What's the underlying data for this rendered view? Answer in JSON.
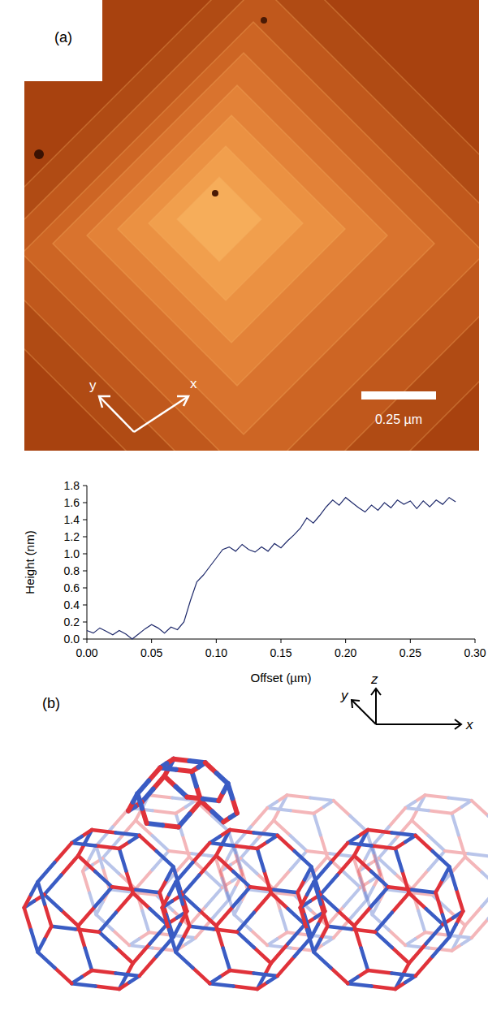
{
  "panel_a": {
    "label": "(a)",
    "axis_x": "x",
    "axis_y": "y",
    "scale_bar": "0.25 µm"
  },
  "chart_data": {
    "type": "line",
    "x_label": "Offset (µm)",
    "y_label": "Height (nm)",
    "color": "#1f2a6b",
    "x": [
      0.0,
      0.005,
      0.01,
      0.015,
      0.02,
      0.025,
      0.03,
      0.035,
      0.04,
      0.045,
      0.05,
      0.055,
      0.06,
      0.065,
      0.07,
      0.075,
      0.08,
      0.085,
      0.09,
      0.095,
      0.1,
      0.105,
      0.11,
      0.115,
      0.12,
      0.125,
      0.13,
      0.135,
      0.14,
      0.145,
      0.15,
      0.155,
      0.16,
      0.165,
      0.17,
      0.175,
      0.18,
      0.185,
      0.19,
      0.195,
      0.2,
      0.205,
      0.21,
      0.215,
      0.22,
      0.225,
      0.23,
      0.235,
      0.24,
      0.245,
      0.25,
      0.255,
      0.26,
      0.265,
      0.27,
      0.275,
      0.28,
      0.285
    ],
    "values": [
      0.1,
      0.07,
      0.13,
      0.09,
      0.05,
      0.1,
      0.06,
      0.0,
      0.06,
      0.12,
      0.17,
      0.13,
      0.07,
      0.14,
      0.11,
      0.2,
      0.45,
      0.67,
      0.75,
      0.85,
      0.95,
      1.05,
      1.08,
      1.03,
      1.11,
      1.05,
      1.02,
      1.08,
      1.03,
      1.12,
      1.07,
      1.15,
      1.22,
      1.3,
      1.42,
      1.36,
      1.45,
      1.55,
      1.63,
      1.57,
      1.66,
      1.6,
      1.54,
      1.49,
      1.57,
      1.51,
      1.6,
      1.54,
      1.63,
      1.58,
      1.62,
      1.53,
      1.62,
      1.55,
      1.63,
      1.58,
      1.66,
      1.61
    ],
    "xlim": [
      0,
      0.3
    ],
    "ylim": [
      0,
      1.8
    ],
    "xticks": [
      {
        "value": 0,
        "label": "0.00"
      },
      0.05,
      {
        "value": 0.1,
        "label": "0.10"
      },
      0.15,
      {
        "value": 0.2,
        "label": "0.20"
      },
      0.25,
      {
        "value": 0.3,
        "label": "0.30"
      }
    ],
    "yticks": [
      {
        "value": 0,
        "label": "0.0"
      },
      0.2,
      0.4,
      0.6,
      0.8,
      {
        "value": 1.0,
        "label": "1.0"
      },
      1.2,
      1.4,
      1.6,
      1.8
    ],
    "grid": false
  },
  "panel_b": {
    "label": "(b)",
    "axis_z": "z",
    "axis_y": "y",
    "axis_x": "x"
  }
}
